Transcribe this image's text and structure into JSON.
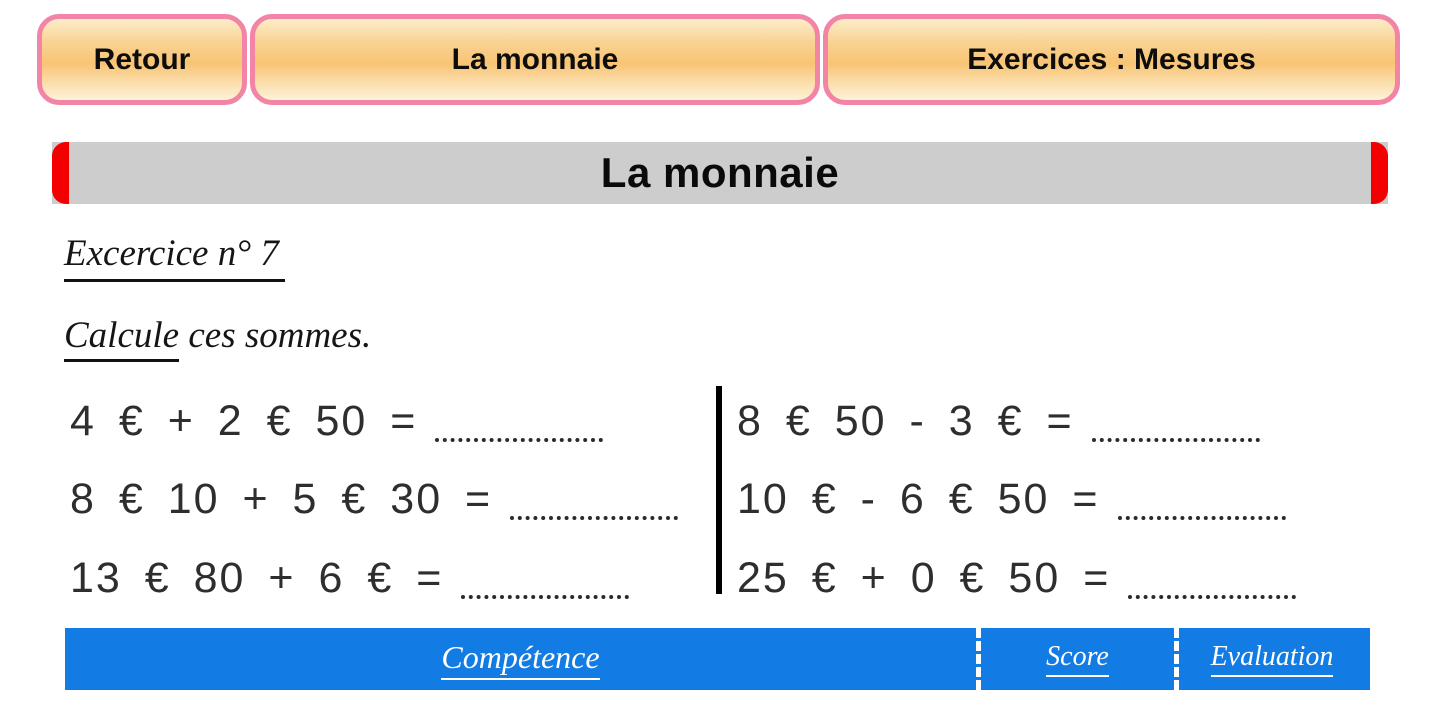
{
  "nav": {
    "back": "Retour",
    "current": "La monnaie",
    "exercises": "Exercices : Mesures"
  },
  "banner": {
    "title": "La monnaie"
  },
  "worksheet": {
    "exercise_heading": "Excercice n° 7",
    "instruction_word": "Calcule",
    "instruction_rest": " ces sommes.",
    "problems_left": [
      "4 € + 2 € 50 =",
      "8 € 10 + 5 € 30 =",
      "13 € 80 + 6 € ="
    ],
    "problems_right": [
      "8 € 50 - 3 € =",
      "10 € - 6 € 50 =",
      "25 € + 0 € 50 ="
    ]
  },
  "result_table": {
    "competence": "Compétence",
    "score": "Score",
    "evaluation": "Evaluation"
  },
  "colors": {
    "button_border_pink": "#f285a5",
    "button_gradient_mid": "#f8c475",
    "banner_gray": "#cdcdcd",
    "banner_accent_red": "#f50000",
    "table_blue": "#127be4"
  }
}
